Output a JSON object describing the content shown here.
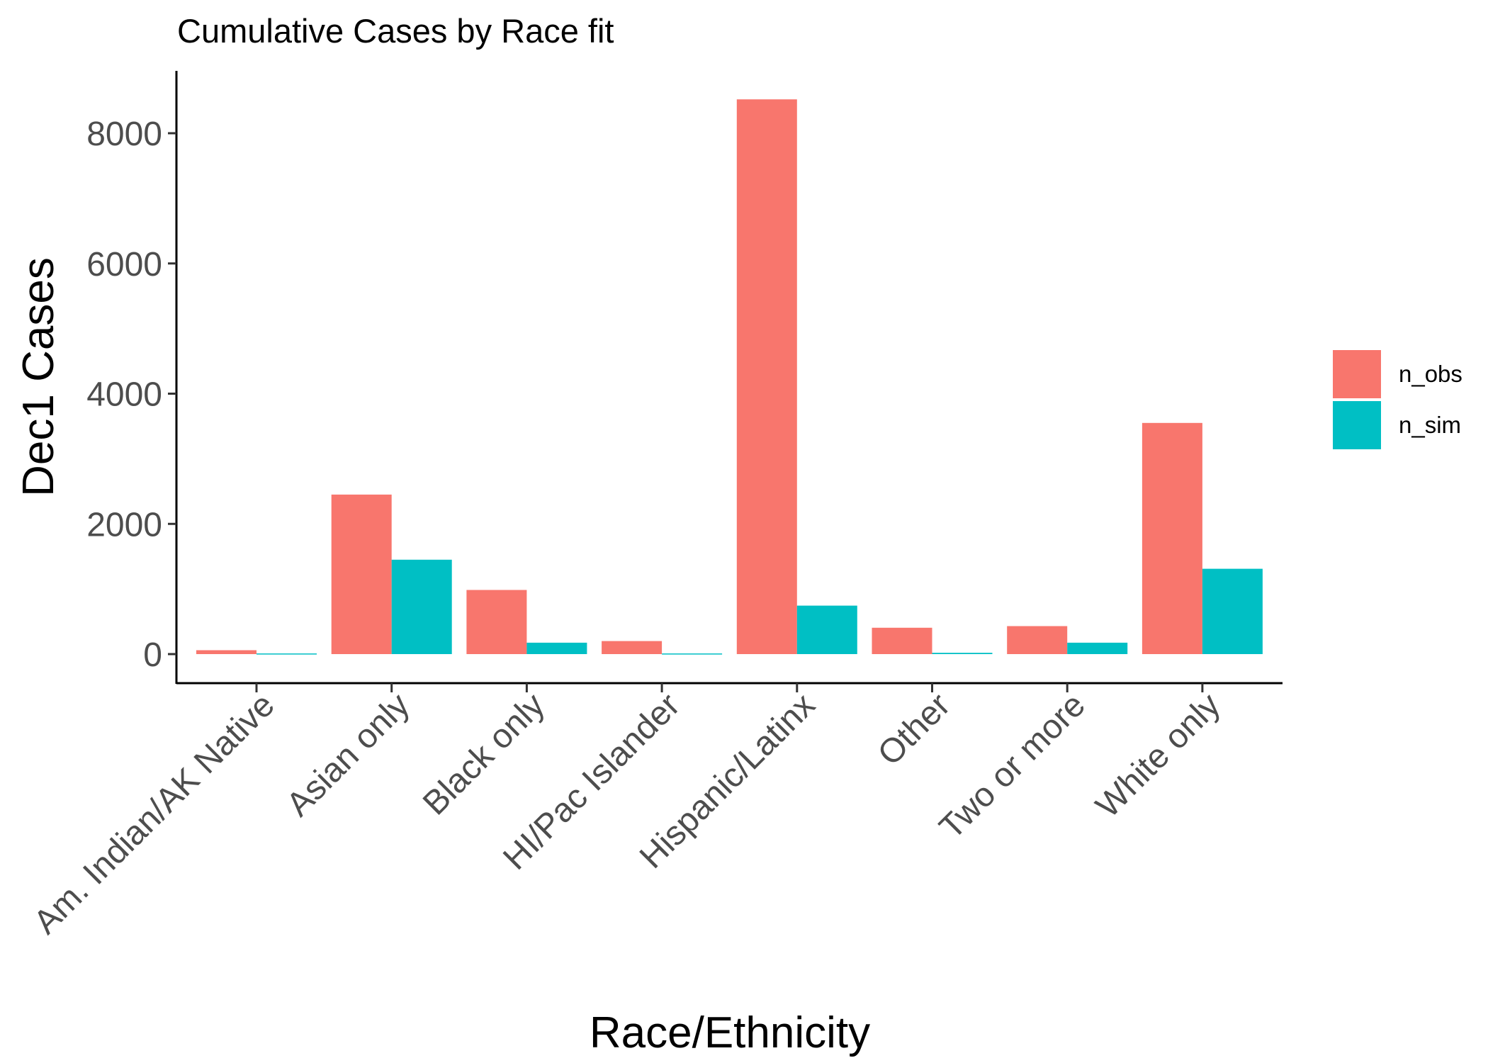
{
  "chart_data": {
    "type": "bar",
    "title": "Cumulative Cases by Race fit",
    "xlabel": "Race/Ethnicity",
    "ylabel": "Dec1 Cases",
    "categories": [
      "Am. Indian/AK Native",
      "Asian only",
      "Black only",
      "HI/Pac Islander",
      "Hispanic/Latinx",
      "Other",
      "Two or more",
      "White only"
    ],
    "series": [
      {
        "name": "n_obs",
        "color": "#F8766D",
        "values": [
          60,
          2450,
          985,
          200,
          8520,
          405,
          430,
          3550
        ]
      },
      {
        "name": "n_sim",
        "color": "#00BFC4",
        "values": [
          10,
          1450,
          175,
          10,
          745,
          20,
          175,
          1310
        ]
      }
    ],
    "yticks": [
      0,
      2000,
      4000,
      6000,
      8000
    ],
    "ytick_labels": [
      "0",
      "2000",
      "4000",
      "6000",
      "8000"
    ],
    "ylim": [
      -420,
      9000
    ],
    "grid": false,
    "legend_position": "right"
  }
}
